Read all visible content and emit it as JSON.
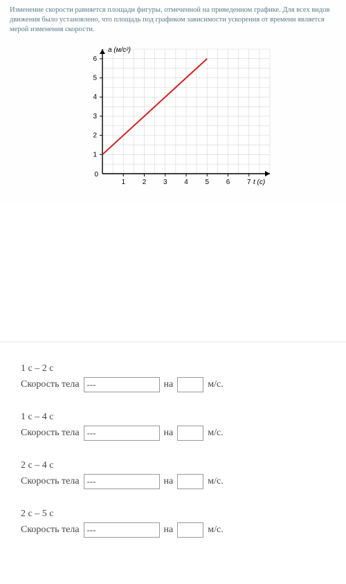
{
  "prompt": "Изменение скорости равняется площади фигуры, отмеченной на приведенном графике. Для всех видов движения было установлено, что площадь под графиком зависимости ускорения от времени является мерой изменения скорости.",
  "chart": {
    "type": "line",
    "y_axis_label": "а (м/с²)",
    "x_axis_label": "t (с)",
    "xlim": [
      0,
      8
    ],
    "ylim": [
      0,
      6.5
    ],
    "x_ticks": [
      1,
      2,
      3,
      4,
      5,
      6,
      7
    ],
    "y_ticks": [
      0,
      1,
      2,
      3,
      4,
      5,
      6
    ],
    "grid_x_minor": 16,
    "grid_y_minor": 13,
    "line_points": [
      [
        0,
        1
      ],
      [
        5,
        6
      ]
    ],
    "line_color": "#d02020",
    "line_width": 2,
    "axis_color": "#000000",
    "grid_color": "#d5d5d5",
    "background_color": "#ffffff",
    "tick_fontsize": 10,
    "label_fontsize": 10
  },
  "answers": {
    "row_label": "Скорость тела",
    "connector": "на",
    "unit": "м/с.",
    "placeholder": "---",
    "items": [
      {
        "interval": "1 с – 2 с",
        "select_value": "",
        "num_value": ""
      },
      {
        "interval": "1 с – 4 с",
        "select_value": "",
        "num_value": ""
      },
      {
        "interval": "2 с – 4 с",
        "select_value": "",
        "num_value": ""
      },
      {
        "interval": "2 с – 5 с",
        "select_value": "",
        "num_value": ""
      }
    ]
  }
}
